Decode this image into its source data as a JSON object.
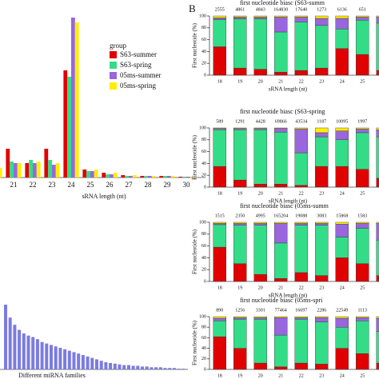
{
  "panel_label": "B",
  "chart_data": [
    {
      "type": "bar",
      "xlabel": "sRNA length (nt)",
      "legend_title": "group",
      "legend": "upper right",
      "categories": [
        null,
        "21",
        "22",
        "23",
        "24",
        "25",
        "26",
        "27",
        "28",
        "29",
        "30"
      ],
      "ylim": [
        0,
        100
      ],
      "series": [
        {
          "name": "S63-summer",
          "color": "#e00000",
          "values": [
            2,
            18,
            9,
            18,
            67,
            5,
            3,
            1.5,
            1,
            1,
            0.5
          ]
        },
        {
          "name": "S63-spring",
          "color": "#33dd88",
          "values": [
            3,
            10,
            11,
            11,
            63,
            4,
            2,
            1,
            1,
            1,
            0.5
          ]
        },
        {
          "name": "05ms-summer",
          "color": "#9966dd",
          "values": [
            4,
            9,
            9,
            8,
            100,
            4,
            2,
            1,
            1,
            1,
            0.5
          ]
        },
        {
          "name": "05ms-spring",
          "color": "#ffee00",
          "values": [
            6,
            9,
            10,
            9,
            97,
            5,
            3,
            1.5,
            1,
            1,
            0.5
          ]
        }
      ]
    },
    {
      "type": "bar",
      "xlabel": "Different miRNA families",
      "color": "#7b7be0",
      "ylim": [
        0,
        100
      ],
      "categories": [
        null,
        null,
        null,
        null,
        null,
        null,
        null,
        null,
        null,
        null,
        null,
        null,
        null,
        null,
        null,
        null,
        null,
        null,
        null,
        null,
        null,
        null,
        null,
        null,
        null,
        null,
        null,
        null,
        null,
        null,
        null,
        null,
        null,
        null,
        null,
        null,
        null,
        null,
        null,
        null
      ],
      "values": [
        90,
        72,
        62,
        55,
        50,
        47,
        45,
        42,
        38,
        36,
        34,
        32,
        30,
        28,
        26,
        24,
        22,
        20,
        18,
        16,
        14,
        12,
        10,
        9,
        8,
        7,
        6,
        6,
        5,
        5,
        4,
        4,
        3,
        3,
        3,
        2,
        2,
        2,
        1,
        1
      ]
    },
    {
      "type": "stacked_bar",
      "title": "first nucleotide biasc (S63-summ",
      "xlabel": "sRNA length (nt)",
      "ylabel": "First nucleotide (%)",
      "categories": [
        "18",
        "19",
        "20",
        "21",
        "22",
        "23",
        "24",
        "25",
        "26"
      ],
      "annotations": [
        "2555",
        "4861",
        "4843",
        "164830",
        "17640",
        "1273",
        "6136",
        "651",
        "156"
      ],
      "ylim": [
        0,
        100
      ],
      "yticks": [
        0,
        20,
        40,
        60,
        80,
        100
      ],
      "series": [
        {
          "color": "#e00000",
          "values": [
            48,
            12,
            10,
            5,
            8,
            12,
            45,
            35,
            8
          ]
        },
        {
          "color": "#33dd88",
          "values": [
            46,
            83,
            85,
            68,
            82,
            72,
            33,
            58,
            80
          ]
        },
        {
          "color": "#9966dd",
          "values": [
            3,
            3,
            3,
            25,
            8,
            12,
            18,
            5,
            10
          ]
        },
        {
          "color": "#ffee00",
          "values": [
            3,
            2,
            2,
            2,
            2,
            4,
            4,
            2,
            2
          ]
        }
      ]
    },
    {
      "type": "stacked_bar",
      "title": "first nucleotide biasc (S63-spring",
      "xlabel": "sRNA length (nt)",
      "ylabel": "First nucleotide (%)",
      "categories": [
        "18",
        "19",
        "20",
        "21",
        "22",
        "23",
        "24",
        "25",
        "26"
      ],
      "annotations": [
        "589",
        "1291",
        "4428",
        "69866",
        "43534",
        "1187",
        "10095",
        "1997",
        "15"
      ],
      "ylim": [
        0,
        100
      ],
      "yticks": [
        0,
        20,
        40,
        60,
        80,
        100
      ],
      "series": [
        {
          "color": "#e00000",
          "values": [
            35,
            12,
            5,
            5,
            3,
            35,
            35,
            30,
            15
          ]
        },
        {
          "color": "#33dd88",
          "values": [
            62,
            85,
            92,
            88,
            55,
            50,
            45,
            62,
            70
          ]
        },
        {
          "color": "#9966dd",
          "values": [
            2,
            2,
            2,
            6,
            40,
            7,
            15,
            6,
            12
          ]
        },
        {
          "color": "#ffee00",
          "values": [
            1,
            1,
            1,
            1,
            2,
            8,
            5,
            2,
            3
          ]
        }
      ]
    },
    {
      "type": "stacked_bar",
      "title": "first nucleotide biasc (05ms-summ",
      "xlabel": "sRNA length (nt)",
      "ylabel": "First nucleotide (%)",
      "categories": [
        "18",
        "19",
        "20",
        "21",
        "22",
        "23",
        "24",
        "25",
        "26"
      ],
      "annotations": [
        "1515",
        "2350",
        "4995",
        "165204",
        "19088",
        "3083",
        "15868",
        "1583",
        "158"
      ],
      "ylim": [
        0,
        100
      ],
      "yticks": [
        0,
        20,
        40,
        60,
        80,
        100
      ],
      "series": [
        {
          "color": "#e00000",
          "values": [
            58,
            30,
            12,
            5,
            15,
            10,
            40,
            30,
            10
          ]
        },
        {
          "color": "#33dd88",
          "values": [
            38,
            65,
            83,
            60,
            80,
            85,
            35,
            60,
            60
          ]
        },
        {
          "color": "#9966dd",
          "values": [
            2,
            3,
            3,
            33,
            3,
            3,
            22,
            8,
            28
          ]
        },
        {
          "color": "#ffee00",
          "values": [
            2,
            2,
            2,
            2,
            2,
            2,
            3,
            2,
            2
          ]
        }
      ]
    },
    {
      "type": "stacked_bar",
      "title": "first nucleotide biasc (05ms-spri",
      "xlabel": "sRNA length (nt)",
      "ylabel": "First nucleotide (%)",
      "categories": [
        "18",
        "19",
        "20",
        "21",
        "22",
        "23",
        "24",
        "25",
        "26"
      ],
      "annotations": [
        "890",
        "1256",
        "3301",
        "77464",
        "16697",
        "2286",
        "22549",
        "1113",
        "5"
      ],
      "ylim": [
        0,
        100
      ],
      "yticks": [
        0,
        20,
        40,
        60,
        80,
        100
      ],
      "series": [
        {
          "color": "#e00000",
          "values": [
            62,
            40,
            12,
            5,
            12,
            10,
            40,
            30,
            12
          ]
        },
        {
          "color": "#33dd88",
          "values": [
            30,
            55,
            83,
            60,
            83,
            80,
            40,
            62,
            60
          ]
        },
        {
          "color": "#9966dd",
          "values": [
            5,
            3,
            3,
            33,
            3,
            8,
            17,
            6,
            25
          ]
        },
        {
          "color": "#ffee00",
          "values": [
            3,
            2,
            2,
            2,
            2,
            2,
            3,
            2,
            3
          ]
        }
      ]
    }
  ]
}
